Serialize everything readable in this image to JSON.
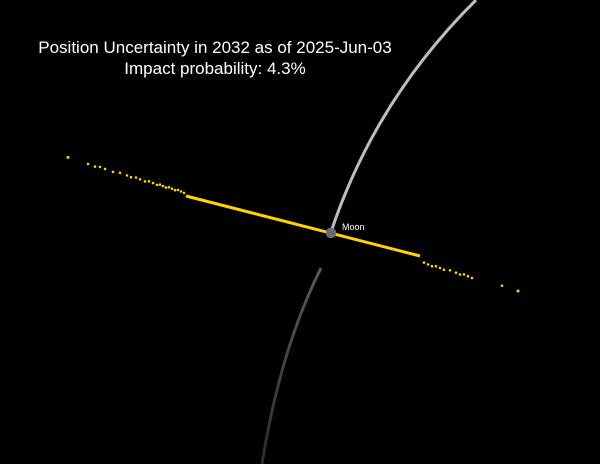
{
  "title": "Position Uncertainty in 2032 as of 2025-Jun-03",
  "subtitle": "Impact probability: 4.3%",
  "moon": {
    "label": "Moon",
    "color": "#6b6b6b"
  },
  "colors": {
    "background": "#000000",
    "uncertainty_points": "#ffd400",
    "moon_orbit": "#bdbdbd",
    "text": "#ffffff"
  }
}
